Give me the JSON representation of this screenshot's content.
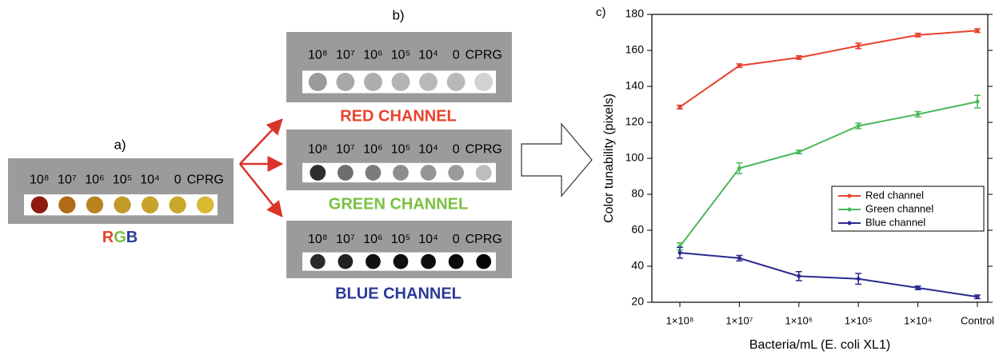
{
  "panels": {
    "a": {
      "label": "a)",
      "well_labels": [
        "10⁸",
        "10⁷",
        "10⁶",
        "10⁵",
        "10⁴",
        "0",
        "CPRG"
      ],
      "caption": [
        {
          "text": "R",
          "color": "#e8432e"
        },
        {
          "text": "G",
          "color": "#7ac143"
        },
        {
          "text": "B",
          "color": "#2b3a97"
        }
      ],
      "well_colors": [
        "#8e1a10",
        "#b06a18",
        "#b78420",
        "#c29a2a",
        "#c6a42c",
        "#c9a72c",
        "#d9b832"
      ]
    },
    "b": {
      "label": "b)",
      "channels": [
        {
          "name": "RED CHANNEL",
          "color": "#e8432e",
          "well_labels": [
            "10⁸",
            "10⁷",
            "10⁶",
            "10⁵",
            "10⁴",
            "0",
            "CPRG"
          ],
          "well_colors": [
            "#9a9a9a",
            "#a8a8a8",
            "#aeaeae",
            "#b4b4b4",
            "#b8b8b8",
            "#b9b9b9",
            "#d2d2d2"
          ]
        },
        {
          "name": "GREEN CHANNEL",
          "color": "#7ac143",
          "well_labels": [
            "10⁸",
            "10⁷",
            "10⁶",
            "10⁵",
            "10⁴",
            "0",
            "CPRG"
          ],
          "well_colors": [
            "#2e2e2e",
            "#6e6e6e",
            "#7c7c7c",
            "#8e8e8e",
            "#959595",
            "#9b9b9b",
            "#bdbdbd"
          ]
        },
        {
          "name": "BLUE CHANNEL",
          "color": "#2b3a97",
          "well_labels": [
            "10⁸",
            "10⁷",
            "10⁶",
            "10⁵",
            "10⁴",
            "0",
            "CPRG"
          ],
          "well_colors": [
            "#2a2a2a",
            "#222222",
            "#111111",
            "#0f0f0f",
            "#0c0c0c",
            "#0a0a0a",
            "#050505"
          ]
        }
      ]
    }
  },
  "chart_data": {
    "type": "line",
    "label": "c)",
    "x_label": "Bacteria/mL (E. coli XL1)",
    "y_label": "Color tunability (pixels)",
    "categories": [
      "1×10⁸",
      "1×10⁷",
      "1×10⁶",
      "1×10⁵",
      "1×10⁴",
      "Control"
    ],
    "ylim": [
      20,
      180
    ],
    "yticks": [
      20,
      40,
      60,
      80,
      100,
      120,
      140,
      160,
      180
    ],
    "legend": "right",
    "series": [
      {
        "name": "Red channel",
        "color": "#e8432e",
        "values": [
          128.5,
          151.5,
          156,
          162.5,
          168.5,
          171
        ],
        "errors": [
          1,
          1,
          1,
          1.5,
          1,
          1
        ]
      },
      {
        "name": "Green channel",
        "color": "#4bb95a",
        "values": [
          51,
          94.5,
          103.5,
          118,
          124.5,
          131.5
        ],
        "errors": [
          2,
          3,
          1,
          1.5,
          1.5,
          3.5
        ]
      },
      {
        "name": "Blue channel",
        "color": "#2b2a8f",
        "values": [
          47.5,
          44.5,
          34.5,
          33,
          28,
          23
        ],
        "errors": [
          3,
          1.5,
          2.5,
          3,
          1,
          1
        ]
      }
    ]
  }
}
